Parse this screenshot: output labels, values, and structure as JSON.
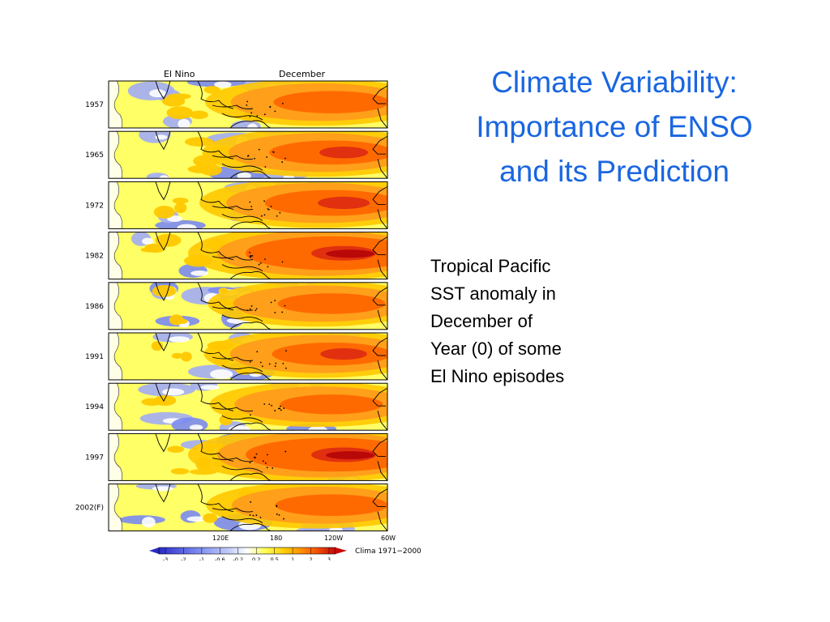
{
  "slide": {
    "title_lines": [
      "Climate Variability:",
      "Importance of ENSO",
      "and its Prediction"
    ],
    "caption_lines": [
      "Tropical Pacific",
      "SST anomaly in",
      "December of",
      "Year (0) of some",
      "El Nino episodes"
    ]
  },
  "figure": {
    "header_left": "El Nino",
    "header_center": "December",
    "years": [
      "1957",
      "1965",
      "1972",
      "1982",
      "1986",
      "1991",
      "1994",
      "1997",
      "2002(F)"
    ],
    "longitude_labels": [
      "120E",
      "180",
      "120W",
      "60W"
    ],
    "colorbar_ticks": [
      "-3",
      "-2",
      "-1",
      "-0.6",
      "-0.2",
      "0.2",
      "0.5",
      "1",
      "2",
      "3"
    ],
    "colorbar_note": "Clima 1971−2000",
    "colors": [
      "#2a2ac8",
      "#4a58e6",
      "#7a8af0",
      "#a2acf4",
      "#c4cdfa",
      "#ffffff",
      "#ffff55",
      "#ffc800",
      "#ff9f1a",
      "#ff6a00",
      "#e03010",
      "#b80808"
    ],
    "panel_intensity": [
      0.7,
      0.75,
      0.8,
      1.0,
      0.65,
      0.72,
      0.62,
      1.0,
      0.68
    ]
  }
}
